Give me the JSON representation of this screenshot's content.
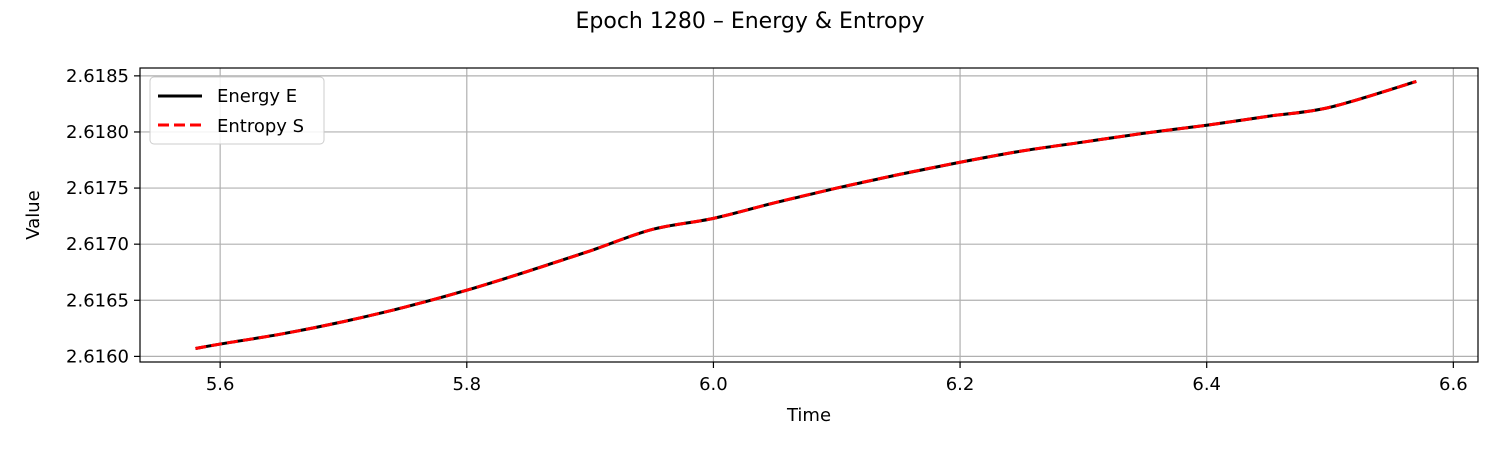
{
  "chart_data": {
    "type": "line",
    "title": "Epoch 1280 – Energy & Entropy",
    "xlabel": "Time",
    "ylabel": "Value",
    "xlim": [
      5.535,
      6.62
    ],
    "ylim": [
      2.61595,
      2.61857
    ],
    "xticks": [
      5.6,
      5.8,
      6.0,
      6.2,
      6.4,
      6.6
    ],
    "xtick_labels": [
      "5.6",
      "5.8",
      "6.0",
      "6.2",
      "6.4",
      "6.6"
    ],
    "yticks": [
      2.616,
      2.6165,
      2.617,
      2.6175,
      2.618,
      2.6185
    ],
    "ytick_labels": [
      "2.6160",
      "2.6165",
      "2.6170",
      "2.6175",
      "2.6180",
      "2.6185"
    ],
    "grid": true,
    "legend_position": "top-left",
    "x": [
      5.58,
      5.6,
      5.65,
      5.7,
      5.75,
      5.8,
      5.85,
      5.9,
      5.95,
      6.0,
      6.05,
      6.1,
      6.15,
      6.2,
      6.25,
      6.3,
      6.35,
      6.4,
      6.45,
      6.5,
      6.57
    ],
    "series": [
      {
        "name": "Energy E",
        "color": "#000000",
        "style": "solid",
        "values": [
          2.61607,
          2.61611,
          2.6162,
          2.61631,
          2.61644,
          2.61659,
          2.61676,
          2.61694,
          2.61713,
          2.61723,
          2.61737,
          2.6175,
          2.61762,
          2.61773,
          2.61783,
          2.61791,
          2.61799,
          2.61806,
          2.61814,
          2.61822,
          2.61845
        ]
      },
      {
        "name": "Entropy S",
        "color": "#ff0000",
        "style": "dashed",
        "values": [
          2.61607,
          2.61611,
          2.6162,
          2.61631,
          2.61644,
          2.61659,
          2.61676,
          2.61694,
          2.61713,
          2.61723,
          2.61737,
          2.6175,
          2.61762,
          2.61773,
          2.61783,
          2.61791,
          2.61799,
          2.61806,
          2.61814,
          2.61822,
          2.61845
        ]
      }
    ]
  }
}
